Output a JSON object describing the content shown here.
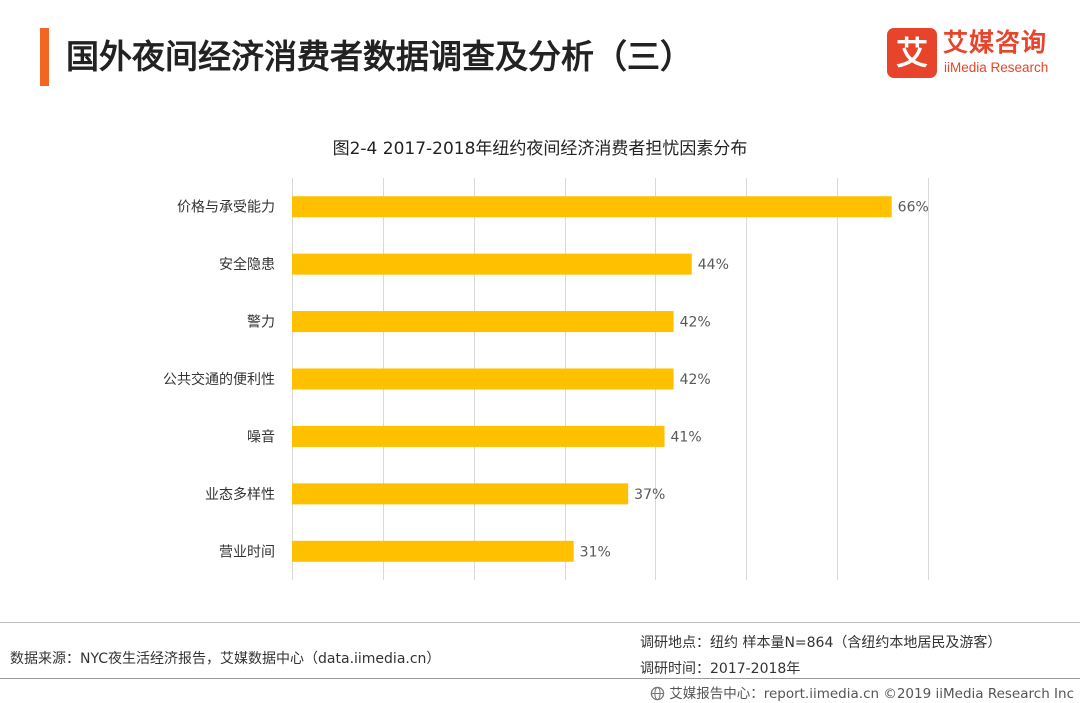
{
  "header": {
    "title": "国外夜间经济消费者数据调查及分析（三）"
  },
  "logo": {
    "mark": "艾",
    "name": "艾媒咨询",
    "sub": "iiMedia Research"
  },
  "colors": {
    "accent": "#f26522",
    "bar": "#ffc000",
    "grid": "#d9d9d9",
    "brand": "#e8442b"
  },
  "chart_data": {
    "type": "bar",
    "orientation": "horizontal",
    "title": "图2-4  2017-2018年纽约夜间经济消费者担忧因素分布",
    "categories": [
      "价格与承受能力",
      "安全隐患",
      "警力",
      "公共交通的便利性",
      "噪音",
      "业态多样性",
      "营业时间"
    ],
    "values": [
      66,
      44,
      42,
      42,
      41,
      37,
      31
    ],
    "value_labels": [
      "66%",
      "44%",
      "42%",
      "42%",
      "41%",
      "37%",
      "31%"
    ],
    "unit": "%",
    "xlim": [
      0,
      70
    ],
    "grid": true,
    "xlabel": "",
    "ylabel": ""
  },
  "footer": {
    "source": "数据来源：NYC夜生活经济报告，艾媒数据中心（data.iimedia.cn）",
    "location": "调研地点：纽约    样本量N=864（含纽约本地居民及游客）",
    "time": "调研时间：2017-2018年"
  },
  "bottom_bar": {
    "text": "艾媒报告中心：report.iimedia.cn  ©2019  iiMedia Research  Inc"
  }
}
